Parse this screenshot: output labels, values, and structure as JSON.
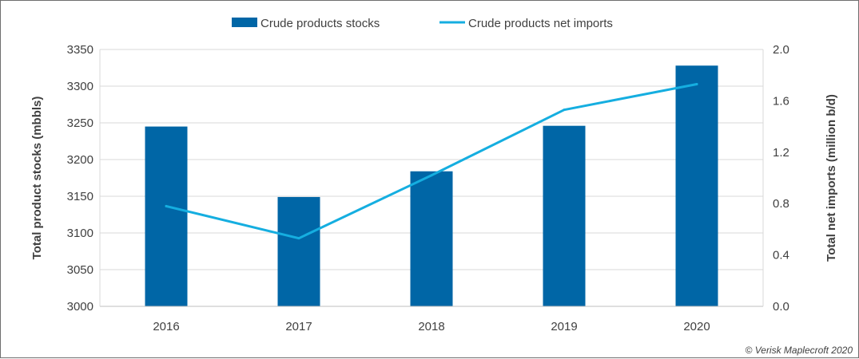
{
  "chart_data": {
    "type": "bar",
    "categories": [
      "2016",
      "2017",
      "2018",
      "2019",
      "2020"
    ],
    "series": [
      {
        "name": "Crude products stocks",
        "type": "bar",
        "axis": "left",
        "color": "#0066a6",
        "values": [
          3245,
          3149,
          3184,
          3246,
          3328
        ]
      },
      {
        "name": "Crude products net imports",
        "type": "line",
        "axis": "right",
        "color": "#15aee0",
        "values": [
          0.78,
          0.53,
          1.02,
          1.53,
          1.73
        ]
      }
    ],
    "ylabel": "Total product stocks (mbbls)",
    "ylim": [
      3000,
      3350
    ],
    "yticks": [
      "3000",
      "3050",
      "3100",
      "3150",
      "3200",
      "3250",
      "3300",
      "3350"
    ],
    "y2label": "Total net imports (million b/d)",
    "y2lim": [
      0.0,
      2.0
    ],
    "y2ticks": [
      "0.0",
      "0.4",
      "0.8",
      "1.2",
      "1.6",
      "2.0"
    ],
    "grid": true,
    "legend": "top-center",
    "credit": "© Verisk Maplecroft 2020"
  }
}
